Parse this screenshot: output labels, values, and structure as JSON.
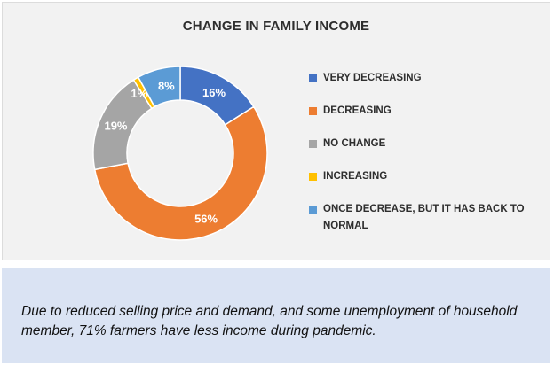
{
  "chart_data": {
    "type": "pie",
    "title": "CHANGE IN FAMILY INCOME",
    "categories": [
      "VERY DECREASING",
      "DECREASING",
      "NO CHANGE",
      "INCREASING",
      "ONCE DECREASE, BUT IT HAS BACK TO NORMAL"
    ],
    "values": [
      16,
      56,
      19,
      1,
      8
    ],
    "labels": [
      "16%",
      "56%",
      "19%",
      "1%",
      "8%"
    ],
    "colors": [
      "#4472c4",
      "#ed7d31",
      "#a5a5a5",
      "#ffc000",
      "#5b9bd5"
    ],
    "donut": true,
    "legend_position": "right"
  },
  "note": {
    "text": "Due to reduced selling price and demand, and some unemployment of household member, 71% farmers have less income during pandemic."
  }
}
